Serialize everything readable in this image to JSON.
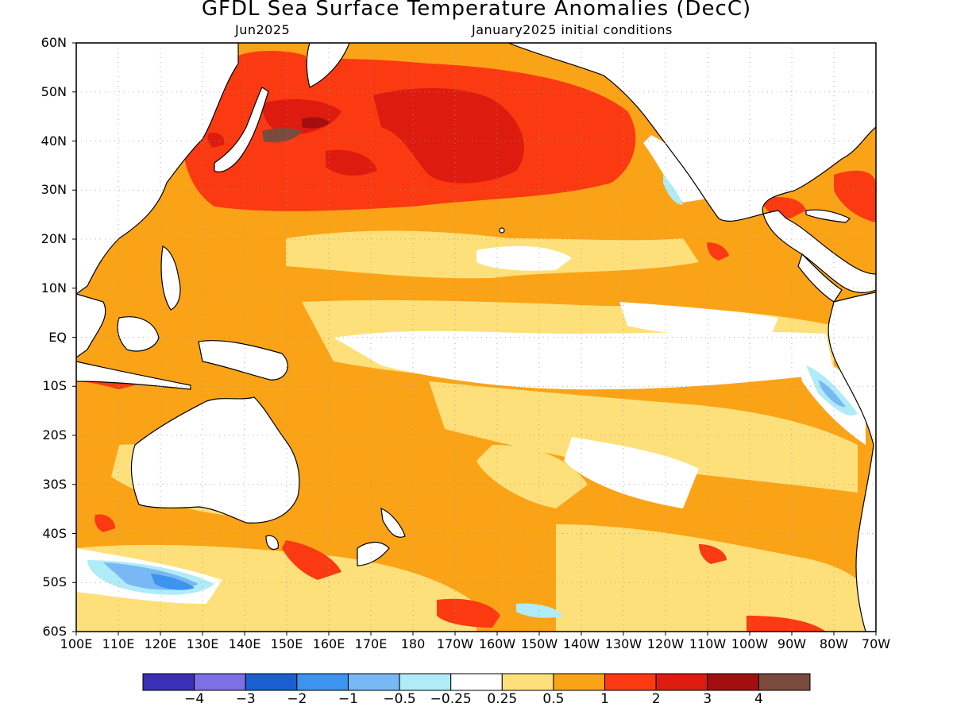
{
  "title": "GFDL Sea Surface Temperature Anomalies (DecC)",
  "subtitle_left": "Jun2025",
  "subtitle_right": "January2025 initial conditions",
  "lat_labels": [
    "60N",
    "50N",
    "40N",
    "30N",
    "20N",
    "10N",
    "EQ",
    "10S",
    "20S",
    "30S",
    "40S",
    "50S",
    "60S"
  ],
  "lon_labels": [
    "100E",
    "110E",
    "120E",
    "130E",
    "140E",
    "150E",
    "160E",
    "170E",
    "180",
    "170W",
    "160W",
    "150W",
    "140W",
    "130W",
    "120W",
    "110W",
    "100W",
    "90W",
    "80W",
    "70W"
  ],
  "colorbar": {
    "colors": [
      "#3b2eb8",
      "#7d6fe6",
      "#1a5fd0",
      "#3c93f0",
      "#78b8f5",
      "#b0ecf8",
      "#ffffff",
      "#fde07a",
      "#fba317",
      "#fb3a12",
      "#dd1c0f",
      "#a30f0f",
      "#7a4a3c"
    ],
    "labels": [
      "−4",
      "−3",
      "−2",
      "−1",
      "−0.5",
      "−0.25",
      "0.25",
      "0.5",
      "1",
      "2",
      "3",
      "4"
    ]
  },
  "colors": {
    "land": "#ffffff",
    "coastline": "#000000",
    "background_anomaly": "#fba317"
  }
}
